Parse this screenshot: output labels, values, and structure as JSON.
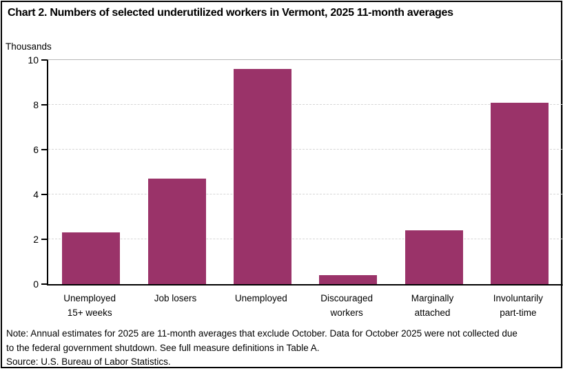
{
  "chart": {
    "title": "Chart 2. Numbers of selected underutilized workers in Vermont, 2025 11-month averages",
    "units_label": "Thousands",
    "note": "Note: Annual estimates for 2025 are 11-month averages that exclude October. Data for October 2025 were not collected due to the federal government shutdown. See full measure definitions in Table A.",
    "source": "Source: U.S. Bureau of Labor Statistics."
  },
  "chart_data": {
    "type": "bar",
    "title": "Chart 2. Numbers of selected underutilized workers in Vermont, 2025 11-month averages",
    "categories": [
      "Unemployed 15+ weeks",
      "Job losers",
      "Unemployed",
      "Discouraged workers",
      "Marginally attached",
      "Involuntarily part-time"
    ],
    "category_lines": [
      [
        "Unemployed",
        "15+ weeks"
      ],
      [
        "Job losers"
      ],
      [
        "Unemployed"
      ],
      [
        "Discouraged",
        "workers"
      ],
      [
        "Marginally",
        "attached"
      ],
      [
        "Involuntarily",
        "part-time"
      ]
    ],
    "values": [
      2.3,
      4.7,
      9.6,
      0.4,
      2.4,
      8.1
    ],
    "xlabel": "",
    "ylabel": "Thousands",
    "ylim": [
      0,
      10
    ],
    "yticks": [
      0,
      2,
      4,
      6,
      8,
      10
    ],
    "grid": "horizontal-dashed",
    "legend": "none",
    "colors": {
      "bar": "#9a3369",
      "gridline": "#d6d6d6",
      "plot_frame": "#bfbfbf",
      "axis": "#000000"
    }
  }
}
